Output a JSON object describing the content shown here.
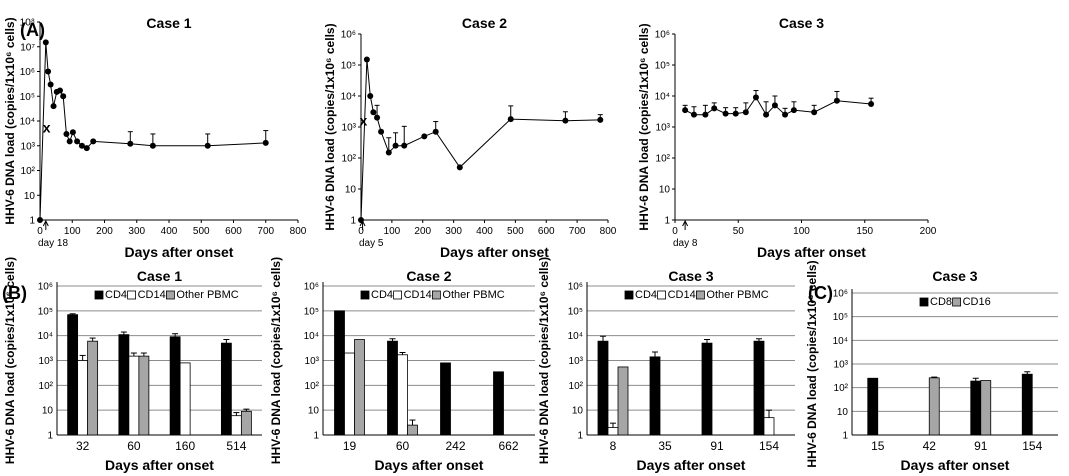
{
  "panels": [
    {
      "letter": "(A)"
    },
    {
      "letter": "(B)"
    },
    {
      "letter": "(C)"
    }
  ],
  "chart_data": [
    {
      "type": "line",
      "panel": "A",
      "title": "Case 1",
      "xlabel": "Days after onset",
      "ylabel": "HHV-6 DNA load (copies/1x10⁶ cells)",
      "xlim": [
        0,
        800
      ],
      "xticks": [
        0,
        100,
        200,
        300,
        400,
        500,
        600,
        700,
        800
      ],
      "ylim": [
        1,
        100000000
      ],
      "yscale": "log",
      "yticks": [
        {
          "v": 1,
          "label": "1"
        },
        {
          "v": 10,
          "label": "10"
        },
        {
          "v": 100,
          "label": "10²"
        },
        {
          "v": 1000,
          "label": "10³"
        },
        {
          "v": 10000,
          "label": "10⁴"
        },
        {
          "v": 100000,
          "label": "10⁵"
        },
        {
          "v": 1000000,
          "label": "10⁶"
        },
        {
          "v": 10000000,
          "label": "10⁷"
        },
        {
          "v": 100000000,
          "label": "10⁸"
        }
      ],
      "marker": {
        "label": "day 18",
        "x": 18
      },
      "x_mark": {
        "label": "x",
        "x": 18,
        "y": 5000
      },
      "series": [
        {
          "points": [
            {
              "x": 0,
              "y": 1
            },
            {
              "x": 18,
              "y": 15000000
            },
            {
              "x": 25,
              "y": 1000000
            },
            {
              "x": 33,
              "y": 300000
            },
            {
              "x": 42,
              "y": 40000
            },
            {
              "x": 52,
              "y": 150000
            },
            {
              "x": 62,
              "y": 170000
            },
            {
              "x": 72,
              "y": 100000
            },
            {
              "x": 82,
              "y": 3000
            },
            {
              "x": 92,
              "y": 1500
            },
            {
              "x": 102,
              "y": 3500
            },
            {
              "x": 115,
              "y": 1500
            },
            {
              "x": 130,
              "y": 1000
            },
            {
              "x": 145,
              "y": 800
            },
            {
              "x": 165,
              "y": 1500
            },
            {
              "x": 280,
              "y": 1200,
              "err": 2500
            },
            {
              "x": 350,
              "y": 1000,
              "err": 2000
            },
            {
              "x": 520,
              "y": 1000,
              "err": 2000
            },
            {
              "x": 700,
              "y": 1300,
              "err": 2800
            }
          ]
        }
      ]
    },
    {
      "type": "line",
      "panel": "A",
      "title": "Case 2",
      "xlabel": "Days after onset",
      "ylabel": "HHV-6 DNA load (copies/1x10⁶ cells)",
      "xlim": [
        0,
        800
      ],
      "xticks": [
        0,
        100,
        200,
        300,
        400,
        500,
        600,
        700,
        800
      ],
      "ylim": [
        1,
        1000000
      ],
      "yscale": "log",
      "yticks": [
        {
          "v": 1,
          "label": "1"
        },
        {
          "v": 10,
          "label": "10"
        },
        {
          "v": 100,
          "label": "10²"
        },
        {
          "v": 1000,
          "label": "10³"
        },
        {
          "v": 10000,
          "label": "10⁴"
        },
        {
          "v": 100000,
          "label": "10⁵"
        },
        {
          "v": 1000000,
          "label": "10⁶"
        }
      ],
      "marker": {
        "label": "day 5",
        "x": 5
      },
      "x_mark": {
        "label": "x",
        "x": 5,
        "y": 1500
      },
      "series": [
        {
          "points": [
            {
              "x": 0,
              "y": 1
            },
            {
              "x": 19,
              "y": 150000
            },
            {
              "x": 30,
              "y": 10000
            },
            {
              "x": 40,
              "y": 3000
            },
            {
              "x": 52,
              "y": 2000,
              "err": 3000
            },
            {
              "x": 65,
              "y": 700
            },
            {
              "x": 90,
              "y": 150,
              "err": 300
            },
            {
              "x": 112,
              "y": 250,
              "err": 400
            },
            {
              "x": 140,
              "y": 250,
              "err": 800
            },
            {
              "x": 205,
              "y": 500
            },
            {
              "x": 242,
              "y": 700,
              "err": 800
            },
            {
              "x": 320,
              "y": 50
            },
            {
              "x": 485,
              "y": 1800,
              "err": 3000
            },
            {
              "x": 662,
              "y": 1600,
              "err": 1500
            },
            {
              "x": 775,
              "y": 1700,
              "err": 800
            }
          ]
        }
      ]
    },
    {
      "type": "line",
      "panel": "A",
      "title": "Case 3",
      "xlabel": "Days after onset",
      "ylabel": "HHV-6 DNA load (copies/1x10⁶ cells)",
      "xlim": [
        0,
        200
      ],
      "xticks": [
        0,
        50,
        100,
        150,
        200
      ],
      "ylim": [
        1,
        1000000
      ],
      "yscale": "log",
      "yticks": [
        {
          "v": 1,
          "label": "1"
        },
        {
          "v": 10,
          "label": "10"
        },
        {
          "v": 100,
          "label": "10²"
        },
        {
          "v": 1000,
          "label": "10³"
        },
        {
          "v": 10000,
          "label": "10⁴"
        },
        {
          "v": 100000,
          "label": "10⁵"
        },
        {
          "v": 1000000,
          "label": "10⁶"
        }
      ],
      "marker": {
        "label": "day 8",
        "x": 8
      },
      "series": [
        {
          "points": [
            {
              "x": 8,
              "y": 3500,
              "err": 1500
            },
            {
              "x": 15,
              "y": 2500,
              "err": 2000
            },
            {
              "x": 24,
              "y": 2500,
              "err": 2500
            },
            {
              "x": 31,
              "y": 4000,
              "err": 2000
            },
            {
              "x": 40,
              "y": 2700,
              "err": 1500
            },
            {
              "x": 48,
              "y": 2700,
              "err": 1500
            },
            {
              "x": 56,
              "y": 3000,
              "err": 3000
            },
            {
              "x": 64,
              "y": 9000,
              "err": 6000
            },
            {
              "x": 72,
              "y": 2500,
              "err": 4000
            },
            {
              "x": 79,
              "y": 5000,
              "err": 5000
            },
            {
              "x": 87,
              "y": 2500,
              "err": 1500
            },
            {
              "x": 94,
              "y": 3500,
              "err": 3000
            },
            {
              "x": 110,
              "y": 3000,
              "err": 2000
            },
            {
              "x": 128,
              "y": 7000,
              "err": 7000
            },
            {
              "x": 155,
              "y": 5500,
              "err": 3000
            }
          ]
        }
      ]
    },
    {
      "type": "bar",
      "panel": "B",
      "title": "Case 1",
      "xlabel": "Days after onset",
      "ylabel": "HHV-6 DNA load (copies/1x10⁶ cells)",
      "categories": [
        "32",
        "60",
        "160",
        "514"
      ],
      "ylim": [
        1,
        1000000
      ],
      "yscale": "log",
      "yticks": [
        {
          "v": 1,
          "label": "1"
        },
        {
          "v": 10,
          "label": "10"
        },
        {
          "v": 100,
          "label": "10²"
        },
        {
          "v": 1000,
          "label": "10³"
        },
        {
          "v": 10000,
          "label": "10⁴"
        },
        {
          "v": 100000,
          "label": "10⁵"
        },
        {
          "v": 1000000,
          "label": "10⁶"
        }
      ],
      "legend": "top",
      "series": [
        {
          "name": "CD4",
          "color": "#000000",
          "values": [
            70000,
            11000,
            9000,
            5000
          ],
          "err": [
            6000,
            3000,
            3000,
            2000
          ]
        },
        {
          "name": "CD14",
          "color": "#ffffff",
          "values": [
            1000,
            1500,
            800,
            6
          ],
          "err": [
            600,
            500,
            0,
            2
          ]
        },
        {
          "name": "Other PBMC",
          "color": "#a6a6a6",
          "values": [
            6000,
            1500,
            null,
            9
          ],
          "err": [
            2000,
            500,
            0,
            2
          ]
        }
      ]
    },
    {
      "type": "bar",
      "panel": "B",
      "title": "Case 2",
      "xlabel": "Days after onset",
      "ylabel": "HHV-6 DNA load (copies/1x10⁶ cells)",
      "categories": [
        "19",
        "60",
        "242",
        "662"
      ],
      "ylim": [
        1,
        1000000
      ],
      "yscale": "log",
      "yticks": [
        {
          "v": 1,
          "label": "1"
        },
        {
          "v": 10,
          "label": "10"
        },
        {
          "v": 100,
          "label": "10²"
        },
        {
          "v": 1000,
          "label": "10³"
        },
        {
          "v": 10000,
          "label": "10⁴"
        },
        {
          "v": 100000,
          "label": "10⁵"
        },
        {
          "v": 1000000,
          "label": "10⁶"
        }
      ],
      "legend": "top",
      "series": [
        {
          "name": "CD4",
          "color": "#000000",
          "values": [
            100000,
            6000,
            800,
            350
          ],
          "err": [
            0,
            1500,
            0,
            0
          ]
        },
        {
          "name": "CD14",
          "color": "#ffffff",
          "values": [
            2000,
            1700,
            null,
            null
          ],
          "err": [
            0,
            400,
            0,
            0
          ]
        },
        {
          "name": "Other PBMC",
          "color": "#a6a6a6",
          "values": [
            7000,
            2.5,
            null,
            null
          ],
          "err": [
            0,
            1.5,
            0,
            0
          ]
        }
      ]
    },
    {
      "type": "bar",
      "panel": "B",
      "title": "Case 3",
      "xlabel": "Days after onset",
      "ylabel": "HHV-6 DNA load (copies/1x10⁶ cells)",
      "categories": [
        "8",
        "35",
        "91",
        "154"
      ],
      "ylim": [
        1,
        1000000
      ],
      "yscale": "log",
      "yticks": [
        {
          "v": 1,
          "label": "1"
        },
        {
          "v": 10,
          "label": "10"
        },
        {
          "v": 100,
          "label": "10²"
        },
        {
          "v": 1000,
          "label": "10³"
        },
        {
          "v": 10000,
          "label": "10⁴"
        },
        {
          "v": 100000,
          "label": "10⁵"
        },
        {
          "v": 1000000,
          "label": "10⁶"
        }
      ],
      "legend": "top",
      "series": [
        {
          "name": "CD4",
          "color": "#000000",
          "values": [
            6000,
            1400,
            5000,
            6000
          ],
          "err": [
            3500,
            800,
            2000,
            1500
          ]
        },
        {
          "name": "CD14",
          "color": "#ffffff",
          "values": [
            2,
            null,
            null,
            5
          ],
          "err": [
            1,
            0,
            0,
            5
          ]
        },
        {
          "name": "Other PBMC",
          "color": "#a6a6a6",
          "values": [
            550,
            null,
            null,
            null
          ],
          "err": [
            0,
            0,
            0,
            0
          ]
        }
      ]
    },
    {
      "type": "bar",
      "panel": "C",
      "title": "Case 3",
      "xlabel": "Days after onset",
      "ylabel": "HHV-6 DNA load (copies/1x10⁶ cells)",
      "categories": [
        "15",
        "42",
        "91",
        "154"
      ],
      "ylim": [
        1,
        1000000
      ],
      "yscale": "log",
      "yticks": [
        {
          "v": 1,
          "label": "1"
        },
        {
          "v": 10,
          "label": "10"
        },
        {
          "v": 100,
          "label": "10²"
        },
        {
          "v": 1000,
          "label": "10³"
        },
        {
          "v": 10000,
          "label": "10⁴"
        },
        {
          "v": 100000,
          "label": "10⁵"
        },
        {
          "v": 1000000,
          "label": "10⁶"
        }
      ],
      "legend": "top",
      "series": [
        {
          "name": "CD8",
          "color": "#000000",
          "values": [
            250,
            null,
            190,
            370
          ],
          "err": [
            0,
            0,
            60,
            100
          ]
        },
        {
          "name": "CD16",
          "color": "#a6a6a6",
          "values": [
            null,
            260,
            200,
            null
          ],
          "err": [
            0,
            20,
            0,
            0
          ]
        }
      ]
    }
  ]
}
